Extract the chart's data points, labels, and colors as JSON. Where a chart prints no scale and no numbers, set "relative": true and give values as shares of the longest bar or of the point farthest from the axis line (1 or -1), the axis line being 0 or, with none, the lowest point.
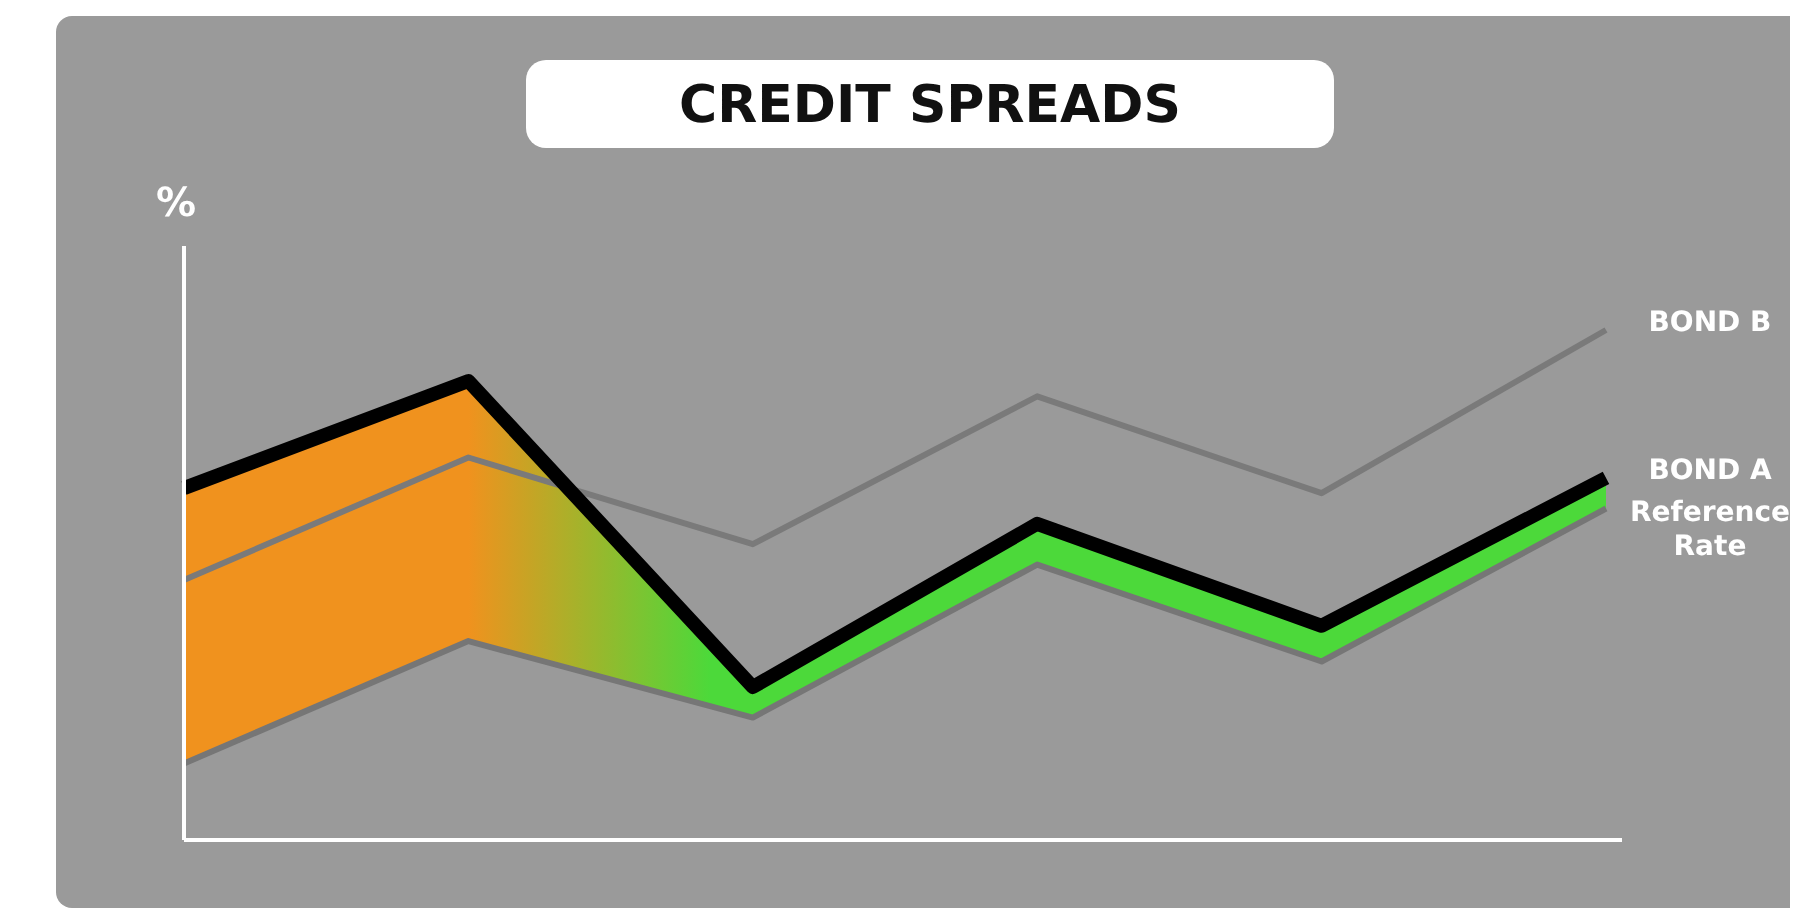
{
  "chart_data": {
    "type": "line",
    "title": "CREDIT SPREADS",
    "ylabel": "%",
    "relative": true,
    "categories": [
      null,
      null,
      null,
      null,
      null,
      null
    ],
    "legend": false,
    "marker": "none",
    "line_style": "solid",
    "grid": false,
    "series": [
      {
        "name": "BOND B",
        "color": "#7a7a7a",
        "values": [
          0.51,
          0.75,
          0.58,
          0.87,
          0.68,
          1
        ]
      },
      {
        "name": "BOND A",
        "color": "#000000",
        "values": [
          0.69,
          0.9,
          0.3,
          0.62,
          0.42,
          0.71
        ]
      },
      {
        "name": "Reference Rate",
        "color": "#767676",
        "values": [
          0.15,
          0.39,
          0.24,
          0.54,
          0.35,
          0.65
        ],
        "lower": [
          0.15,
          0.39,
          0.24,
          0.54,
          0.35,
          0.65
        ],
        "upper": [
          0.69,
          0.9,
          0.3,
          0.62,
          0.42,
          0.71
        ]
      }
    ]
  }
}
